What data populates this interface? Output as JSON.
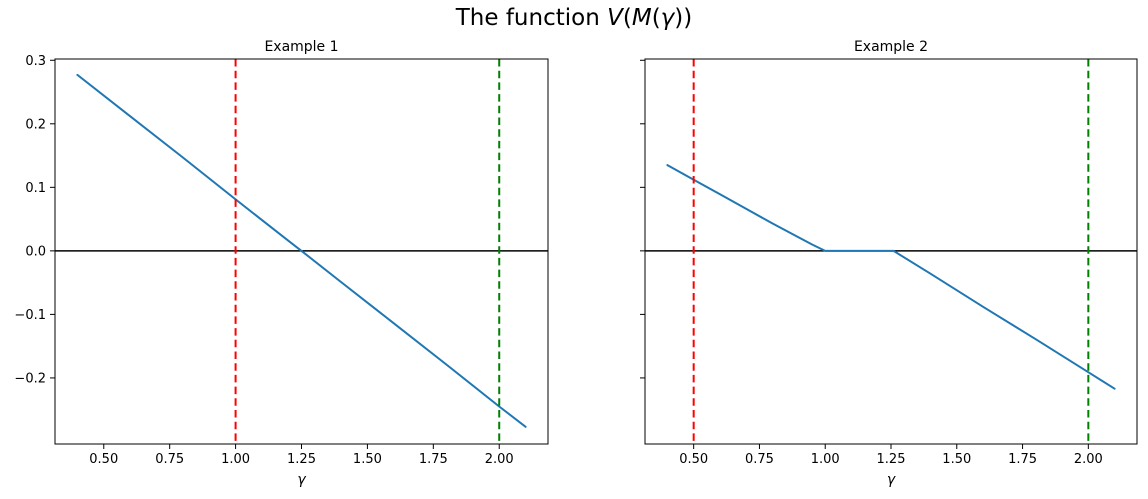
{
  "figure": {
    "title_plain": "The function V(M(γ))",
    "title_segments": [
      {
        "text": "The function ",
        "italic": false
      },
      {
        "text": "V",
        "italic": true
      },
      {
        "text": "(",
        "italic": false
      },
      {
        "text": "M",
        "italic": true
      },
      {
        "text": "(",
        "italic": false
      },
      {
        "text": "γ",
        "italic": true
      },
      {
        "text": "))",
        "italic": false
      }
    ],
    "background_color": "#ffffff",
    "text_color": "#000000",
    "accent_blue": "#1f77b4",
    "accent_red": "#ff0000",
    "accent_green": "#008000"
  },
  "chart_data": [
    {
      "type": "line",
      "title": "Example 1",
      "xlabel": "γ",
      "ylabel": "",
      "xlim": [
        0.315,
        2.185
      ],
      "ylim": [
        -0.304,
        0.302
      ],
      "grid": false,
      "legend": "none",
      "x_ticks": {
        "values": [
          0.5,
          0.75,
          1.0,
          1.25,
          1.5,
          1.75,
          2.0
        ],
        "labels": [
          "0.50",
          "0.75",
          "1.00",
          "1.25",
          "1.50",
          "1.75",
          "2.00"
        ]
      },
      "y_ticks": {
        "values": [
          0.3,
          0.2,
          0.1,
          0.0,
          -0.1,
          -0.2
        ],
        "labels": [
          "0.3",
          "0.2",
          "0.1",
          "0.0",
          "−0.1",
          "−0.2"
        ],
        "labels_visible": true
      },
      "series": [
        {
          "name": "V(M(γ))",
          "color": "#1f77b4",
          "points": [
            [
              0.4,
              0.277
            ],
            [
              0.6,
              0.212
            ],
            [
              0.8,
              0.147
            ],
            [
              1.0,
              0.081
            ],
            [
              1.2,
              0.016
            ],
            [
              1.25,
              0.0
            ],
            [
              1.4,
              -0.049
            ],
            [
              1.6,
              -0.114
            ],
            [
              1.8,
              -0.179
            ],
            [
              2.0,
              -0.245
            ],
            [
              2.1,
              -0.277
            ]
          ]
        }
      ],
      "hline": {
        "y": 0.0,
        "color": "#000000"
      },
      "vlines": [
        {
          "x": 1.0,
          "color": "#ff0000",
          "style": "dashed"
        },
        {
          "x": 2.0,
          "color": "#008000",
          "style": "dashed"
        }
      ]
    },
    {
      "type": "line",
      "title": "Example 2",
      "xlabel": "γ",
      "ylabel": "",
      "xlim": [
        0.315,
        2.185
      ],
      "ylim": [
        -0.304,
        0.302
      ],
      "grid": false,
      "legend": "none",
      "x_ticks": {
        "values": [
          0.5,
          0.75,
          1.0,
          1.25,
          1.5,
          1.75,
          2.0
        ],
        "labels": [
          "0.50",
          "0.75",
          "1.00",
          "1.25",
          "1.50",
          "1.75",
          "2.00"
        ]
      },
      "y_ticks": {
        "values": [
          0.3,
          0.2,
          0.1,
          0.0,
          -0.1,
          -0.2
        ],
        "labels": [
          "0.3",
          "0.2",
          "0.1",
          "0.0",
          "−0.1",
          "−0.2"
        ],
        "labels_visible": false
      },
      "series": [
        {
          "name": "V(M(γ))",
          "color": "#1f77b4",
          "points": [
            [
              0.4,
              0.135
            ],
            [
              0.5,
              0.112
            ],
            [
              0.6,
              0.089
            ],
            [
              0.7,
              0.066
            ],
            [
              0.8,
              0.043
            ],
            [
              0.9,
              0.021
            ],
            [
              0.95,
              0.01
            ],
            [
              1.0,
              0.0
            ],
            [
              1.26,
              0.0
            ],
            [
              1.4,
              -0.036
            ],
            [
              1.6,
              -0.088
            ],
            [
              1.8,
              -0.139
            ],
            [
              2.0,
              -0.191
            ],
            [
              2.1,
              -0.217
            ]
          ]
        }
      ],
      "hline": {
        "y": 0.0,
        "color": "#000000"
      },
      "vlines": [
        {
          "x": 0.5,
          "color": "#ff0000",
          "style": "dashed"
        },
        {
          "x": 2.0,
          "color": "#008000",
          "style": "dashed"
        }
      ]
    }
  ]
}
